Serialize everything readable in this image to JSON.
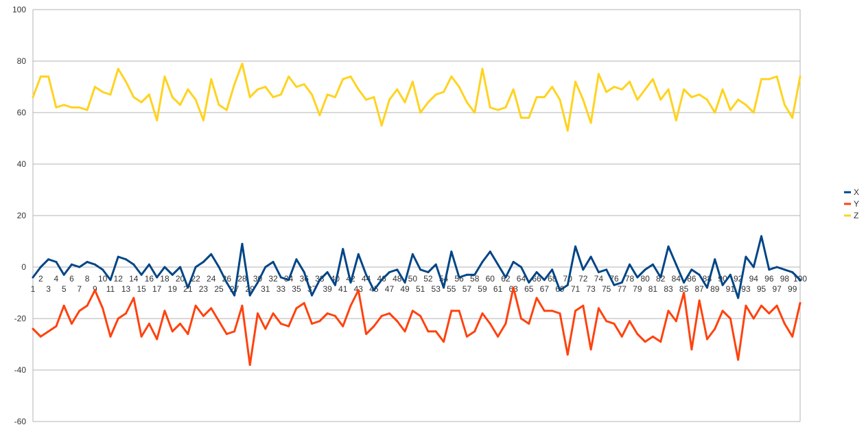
{
  "chart_data": {
    "type": "line",
    "title": "",
    "xlabel": "",
    "ylabel": "",
    "ylim": [
      -60,
      100
    ],
    "yticks": [
      -60,
      -40,
      -20,
      0,
      20,
      40,
      60,
      80,
      100
    ],
    "grid": true,
    "legend_position": "right",
    "x": [
      1,
      2,
      3,
      4,
      5,
      6,
      7,
      8,
      9,
      10,
      11,
      12,
      13,
      14,
      15,
      16,
      17,
      18,
      19,
      20,
      21,
      22,
      23,
      24,
      25,
      26,
      27,
      28,
      29,
      30,
      31,
      32,
      33,
      34,
      35,
      36,
      37,
      38,
      39,
      40,
      41,
      42,
      43,
      44,
      45,
      46,
      47,
      48,
      49,
      50,
      51,
      52,
      53,
      54,
      55,
      56,
      57,
      58,
      59,
      60,
      61,
      62,
      63,
      64,
      65,
      66,
      67,
      68,
      69,
      70,
      71,
      72,
      73,
      74,
      75,
      76,
      77,
      78,
      79,
      80,
      81,
      82,
      83,
      84,
      85,
      86,
      87,
      88,
      89,
      90,
      91,
      92,
      93,
      94,
      95,
      96,
      97,
      98,
      99,
      100
    ],
    "series": [
      {
        "name": "X",
        "color": "#004586",
        "values": [
          -4,
          0,
          3,
          2,
          -3,
          1,
          0,
          2,
          1,
          -1,
          -5,
          4,
          3,
          1,
          -3,
          1,
          -4,
          0,
          -3,
          0,
          -8,
          0,
          2,
          5,
          0,
          -6,
          -11,
          9,
          -11,
          -6,
          0,
          2,
          -4,
          -5,
          3,
          -2,
          -11,
          -5,
          -2,
          -7,
          7,
          -6,
          5,
          -3,
          -9,
          -5,
          -2,
          -1,
          -6,
          5,
          -1,
          -2,
          1,
          -8,
          6,
          -4,
          -3,
          -3,
          2,
          6,
          1,
          -4,
          2,
          0,
          -6,
          -2,
          -5,
          -1,
          -9,
          -7,
          8,
          -1,
          4,
          -2,
          -1,
          -7,
          -6,
          1,
          -4,
          -1,
          1,
          -4,
          8,
          1,
          -6,
          -1,
          -3,
          -8,
          3,
          -7,
          -3,
          -12,
          4,
          0,
          12,
          -1,
          0,
          -1,
          -2,
          -5
        ]
      },
      {
        "name": "Y",
        "color": "#ff420e",
        "values": [
          -24,
          -27,
          -25,
          -23,
          -15,
          -22,
          -17,
          -15,
          -9,
          -16,
          -27,
          -20,
          -18,
          -12,
          -27,
          -22,
          -28,
          -17,
          -25,
          -22,
          -26,
          -15,
          -19,
          -16,
          -21,
          -26,
          -25,
          -15,
          -38,
          -18,
          -24,
          -18,
          -22,
          -23,
          -16,
          -14,
          -22,
          -21,
          -18,
          -19,
          -23,
          -15,
          -9,
          -26,
          -23,
          -19,
          -18,
          -21,
          -25,
          -17,
          -19,
          -25,
          -25,
          -29,
          -17,
          -17,
          -27,
          -25,
          -18,
          -22,
          -27,
          -22,
          -8,
          -20,
          -22,
          -12,
          -17,
          -17,
          -18,
          -34,
          -17,
          -15,
          -32,
          -16,
          -21,
          -22,
          -27,
          -21,
          -26,
          -29,
          -27,
          -29,
          -17,
          -21,
          -10,
          -32,
          -13,
          -28,
          -24,
          -17,
          -20,
          -36,
          -15,
          -20,
          -15,
          -18,
          -15,
          -22,
          -27,
          -14
        ]
      },
      {
        "name": "Z",
        "color": "#ffd320",
        "values": [
          66,
          74,
          74,
          62,
          63,
          62,
          62,
          61,
          70,
          68,
          67,
          77,
          72,
          66,
          64,
          67,
          57,
          74,
          66,
          63,
          69,
          65,
          57,
          73,
          63,
          61,
          71,
          79,
          66,
          69,
          70,
          66,
          67,
          74,
          70,
          71,
          67,
          59,
          67,
          66,
          73,
          74,
          69,
          65,
          66,
          55,
          65,
          69,
          64,
          72,
          60,
          64,
          67,
          68,
          74,
          70,
          64,
          60,
          77,
          62,
          61,
          62,
          69,
          58,
          58,
          66,
          66,
          70,
          65,
          53,
          72,
          65,
          56,
          75,
          68,
          70,
          69,
          72,
          65,
          69,
          73,
          65,
          69,
          57,
          69,
          66,
          67,
          65,
          60,
          69,
          61,
          65,
          63,
          60,
          73,
          73,
          74,
          63,
          58,
          74
        ]
      }
    ]
  }
}
